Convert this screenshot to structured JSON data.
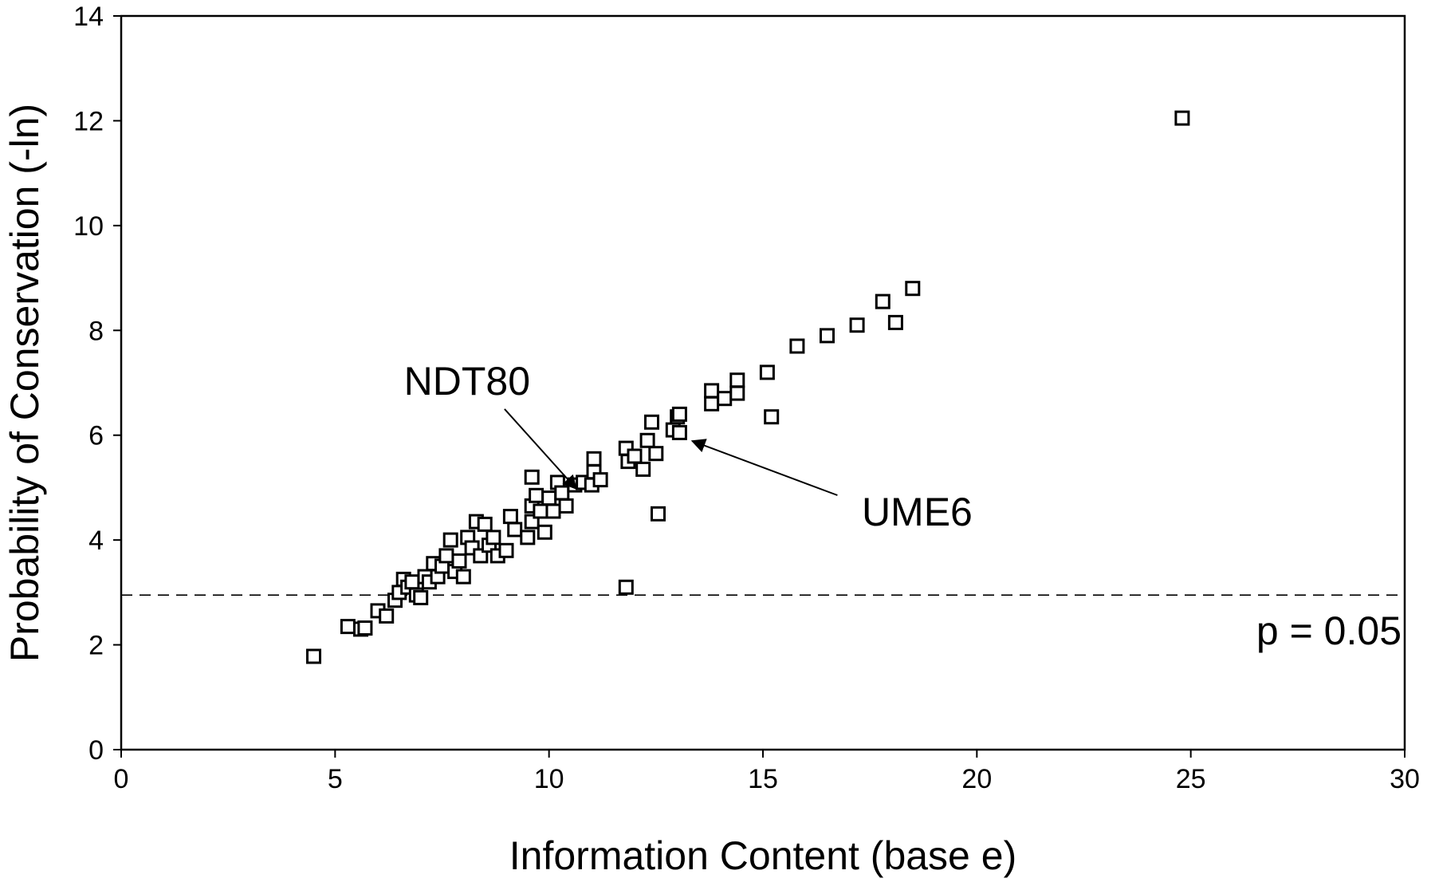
{
  "chart_data": {
    "type": "scatter",
    "title": "",
    "xlabel": "Information Content (base e)",
    "ylabel": "Probability of Conservation (-ln)",
    "xlim": [
      0,
      30
    ],
    "ylim": [
      0,
      14
    ],
    "xticks": [
      0,
      5,
      10,
      15,
      20,
      25,
      30
    ],
    "yticks": [
      0,
      2,
      4,
      6,
      8,
      10,
      12,
      14
    ],
    "grid": false,
    "legend": "none",
    "marker": "open-square",
    "threshold": {
      "y": 2.95,
      "label": "p = 0.05",
      "style": "dashed"
    },
    "annotations": [
      {
        "label": "NDT80",
        "point": [
          10.6,
          5.1
        ]
      },
      {
        "label": "UME6",
        "point": [
          13.2,
          5.95
        ]
      }
    ],
    "series": [
      {
        "points": [
          [
            4.5,
            1.78
          ],
          [
            5.3,
            2.35
          ],
          [
            5.6,
            2.3
          ],
          [
            5.7,
            2.32
          ],
          [
            6.0,
            2.65
          ],
          [
            6.2,
            2.55
          ],
          [
            6.4,
            2.85
          ],
          [
            6.5,
            3.0
          ],
          [
            6.6,
            3.25
          ],
          [
            6.7,
            3.1
          ],
          [
            6.8,
            3.2
          ],
          [
            6.9,
            2.95
          ],
          [
            7.0,
            2.9
          ],
          [
            7.1,
            3.3
          ],
          [
            7.2,
            3.2
          ],
          [
            7.3,
            3.55
          ],
          [
            7.4,
            3.3
          ],
          [
            7.5,
            3.5
          ],
          [
            7.6,
            3.7
          ],
          [
            7.7,
            4.0
          ],
          [
            7.8,
            3.4
          ],
          [
            7.9,
            3.6
          ],
          [
            8.0,
            3.3
          ],
          [
            8.1,
            4.05
          ],
          [
            8.2,
            3.85
          ],
          [
            8.3,
            4.35
          ],
          [
            8.4,
            3.7
          ],
          [
            8.5,
            4.3
          ],
          [
            8.6,
            3.9
          ],
          [
            8.7,
            4.05
          ],
          [
            8.8,
            3.7
          ],
          [
            9.0,
            3.8
          ],
          [
            9.1,
            4.45
          ],
          [
            9.2,
            4.2
          ],
          [
            9.5,
            4.05
          ],
          [
            9.6,
            4.35
          ],
          [
            9.6,
            4.65
          ],
          [
            9.6,
            5.2
          ],
          [
            9.7,
            4.85
          ],
          [
            9.8,
            4.55
          ],
          [
            9.9,
            4.15
          ],
          [
            10.0,
            4.8
          ],
          [
            10.1,
            4.55
          ],
          [
            10.2,
            5.1
          ],
          [
            10.3,
            4.9
          ],
          [
            10.4,
            4.65
          ],
          [
            10.6,
            5.05
          ],
          [
            10.8,
            5.1
          ],
          [
            11.0,
            5.05
          ],
          [
            11.05,
            5.3
          ],
          [
            11.05,
            5.55
          ],
          [
            11.2,
            5.15
          ],
          [
            11.8,
            5.75
          ],
          [
            11.85,
            5.5
          ],
          [
            12.0,
            5.6
          ],
          [
            12.2,
            5.35
          ],
          [
            12.3,
            5.9
          ],
          [
            12.4,
            6.25
          ],
          [
            12.5,
            5.65
          ],
          [
            12.55,
            4.5
          ],
          [
            11.8,
            3.1
          ],
          [
            12.9,
            6.1
          ],
          [
            13.0,
            6.35
          ],
          [
            13.05,
            6.4
          ],
          [
            13.05,
            6.05
          ],
          [
            13.8,
            6.85
          ],
          [
            13.8,
            6.6
          ],
          [
            14.1,
            6.7
          ],
          [
            14.4,
            6.8
          ],
          [
            14.4,
            7.05
          ],
          [
            15.1,
            7.2
          ],
          [
            15.2,
            6.35
          ],
          [
            15.8,
            7.7
          ],
          [
            16.5,
            7.9
          ],
          [
            17.2,
            8.1
          ],
          [
            17.8,
            8.55
          ],
          [
            18.1,
            8.15
          ],
          [
            18.5,
            8.8
          ],
          [
            24.8,
            12.05
          ]
        ]
      }
    ]
  }
}
